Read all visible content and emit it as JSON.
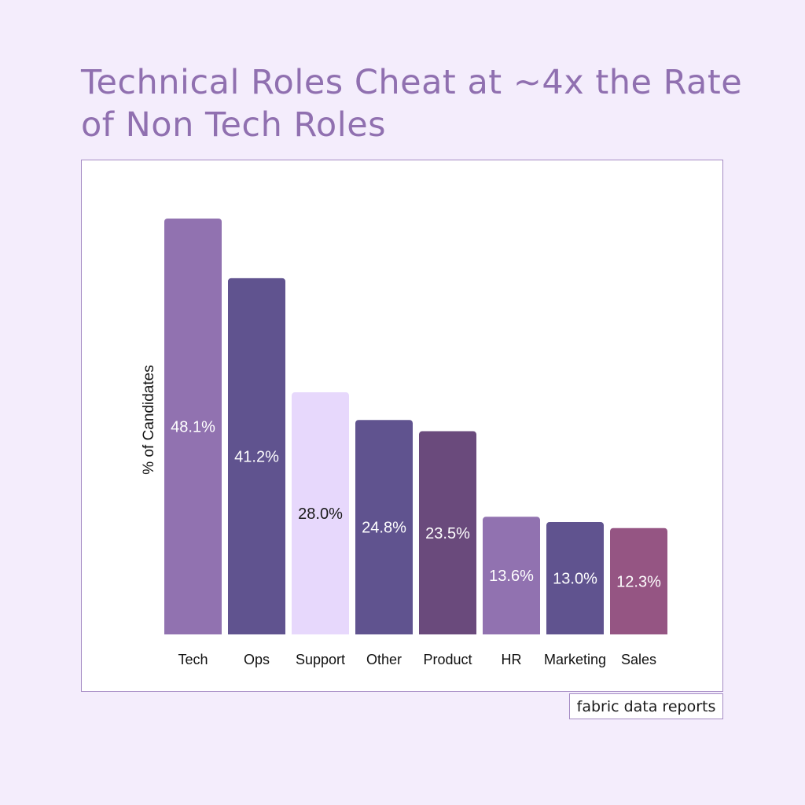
{
  "title": "Technical Roles Cheat at ~4x the Rate of Non Tech Roles",
  "footer": "fabric data reports",
  "chart_data": {
    "type": "bar",
    "title": "Technical Roles Cheat at ~4x the Rate of Non Tech Roles",
    "xlabel": "",
    "ylabel": "% of Candidates",
    "ylim": [
      0,
      48.1
    ],
    "grid": false,
    "categories": [
      "Tech",
      "Ops",
      "Support",
      "Other",
      "Product",
      "HR",
      "Marketing",
      "Sales"
    ],
    "values": [
      48.1,
      41.2,
      28.0,
      24.8,
      23.5,
      13.6,
      13.0,
      12.3
    ],
    "labels": [
      "48.1%",
      "41.2%",
      "28.0%",
      "24.8%",
      "23.5%",
      "13.6%",
      "13.0%",
      "12.3%"
    ],
    "colors": [
      "#9172b0",
      "#60538f",
      "#e7d8fc",
      "#60538f",
      "#6a4a7c",
      "#9172b0",
      "#60538f",
      "#955583"
    ],
    "label_colors": [
      "#ffffff",
      "#ffffff",
      "#1a1a1a",
      "#ffffff",
      "#ffffff",
      "#ffffff",
      "#ffffff",
      "#ffffff"
    ]
  }
}
